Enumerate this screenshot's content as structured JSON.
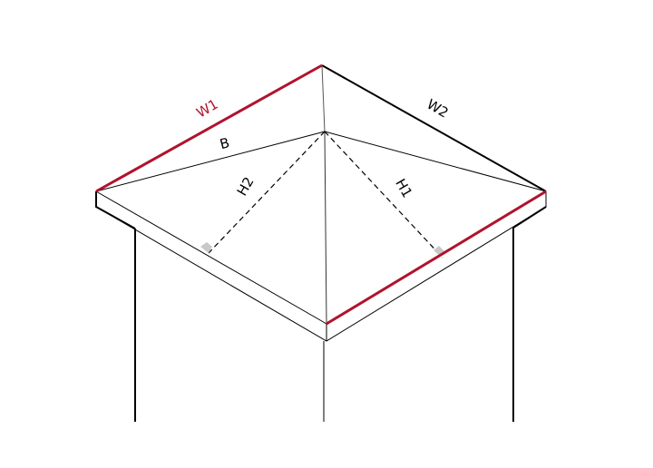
{
  "labels": {
    "w1": "W1",
    "w2": "W2",
    "b": "B",
    "h1": "H1",
    "h2": "H2"
  },
  "colors": {
    "highlight": "#b0132d",
    "line": "#000000",
    "right_angle_marker": "#c8c8c8"
  }
}
